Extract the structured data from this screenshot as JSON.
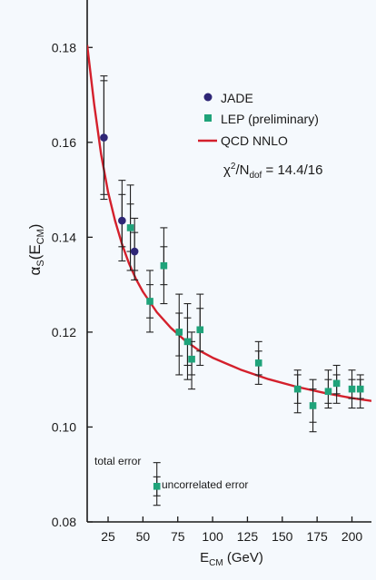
{
  "chart_data": {
    "type": "scatter",
    "xlabel": {
      "main": "E",
      "sub": "CM",
      "unit": " (GeV)"
    },
    "ylabel": {
      "main": "α",
      "sub1": "S",
      "paren_open": "(E",
      "sub2": "CM",
      "paren_close": ")"
    },
    "xlim": [
      10,
      214
    ],
    "ylim": [
      0.08,
      0.19
    ],
    "xticks": [
      25,
      50,
      75,
      100,
      125,
      150,
      175,
      200
    ],
    "xtick_labels": [
      "25",
      "50",
      "75",
      "100",
      "125",
      "150",
      "175",
      "200"
    ],
    "yticks": [
      0.08,
      0.1,
      0.12,
      0.14,
      0.16,
      0.18
    ],
    "ytick_labels": [
      "0.08",
      "0.10",
      "0.12",
      "0.14",
      "0.16",
      "0.18"
    ],
    "grid": false,
    "legend_position": "top-right",
    "legend": [
      {
        "label": "JADE",
        "marker": "circle",
        "color": "#2e2676"
      },
      {
        "label": "LEP (preliminary)",
        "marker": "square",
        "color": "#1fa37a"
      },
      {
        "label": "QCD NNLO",
        "marker": "line",
        "color": "#d4202c"
      }
    ],
    "annotation": {
      "chi": "χ",
      "sup": "2",
      "slash": "/N",
      "sub": "dof",
      "rest": " = 14.4/16"
    },
    "series": [
      {
        "name": "JADE",
        "marker": "circle",
        "color": "#2e2676",
        "points": [
          {
            "x": 22,
            "y": 0.161,
            "tot": [
              0.148,
              0.173
            ],
            "unc": [
              0.149,
              0.174
            ]
          },
          {
            "x": 35,
            "y": 0.1435,
            "tot": [
              0.135,
              0.152
            ],
            "unc": [
              0.138,
              0.149
            ]
          },
          {
            "x": 44,
            "y": 0.137,
            "tot": [
              0.131,
              0.144
            ],
            "unc": [
              0.133,
              0.141
            ]
          }
        ]
      },
      {
        "name": "LEP (preliminary)",
        "marker": "square",
        "color": "#1fa37a",
        "points": [
          {
            "x": 41,
            "y": 0.142,
            "tot": [
              0.133,
              0.151
            ],
            "unc": [
              0.137,
              0.147
            ]
          },
          {
            "x": 55,
            "y": 0.1265,
            "tot": [
              0.12,
              0.133
            ],
            "unc": [
              0.123,
              0.13
            ]
          },
          {
            "x": 65,
            "y": 0.134,
            "tot": [
              0.126,
              0.142
            ],
            "unc": [
              0.13,
              0.138
            ]
          },
          {
            "x": 76,
            "y": 0.12,
            "tot": [
              0.111,
              0.128
            ],
            "unc": [
              0.115,
              0.124
            ]
          },
          {
            "x": 82,
            "y": 0.118,
            "tot": [
              0.11,
              0.126
            ],
            "unc": [
              0.113,
              0.123
            ]
          },
          {
            "x": 85,
            "y": 0.1143,
            "tot": [
              0.108,
              0.12
            ],
            "unc": [
              0.111,
              0.118
            ]
          },
          {
            "x": 91,
            "y": 0.1205,
            "tot": [
              0.113,
              0.128
            ],
            "unc": [
              0.116,
              0.125
            ]
          },
          {
            "x": 133,
            "y": 0.1135,
            "tot": [
              0.109,
              0.118
            ],
            "unc": [
              0.111,
              0.116
            ]
          },
          {
            "x": 161,
            "y": 0.108,
            "tot": [
              0.103,
              0.112
            ],
            "unc": [
              0.105,
              0.111
            ]
          },
          {
            "x": 172,
            "y": 0.1045,
            "tot": [
              0.099,
              0.11
            ],
            "unc": [
              0.101,
              0.108
            ]
          },
          {
            "x": 183,
            "y": 0.1075,
            "tot": [
              0.104,
              0.112
            ],
            "unc": [
              0.105,
              0.11
            ]
          },
          {
            "x": 189,
            "y": 0.1092,
            "tot": [
              0.105,
              0.113
            ],
            "unc": [
              0.107,
              0.111
            ]
          },
          {
            "x": 200,
            "y": 0.108,
            "tot": [
              0.104,
              0.112
            ],
            "unc": [
              0.106,
              0.11
            ]
          },
          {
            "x": 206,
            "y": 0.108,
            "tot": [
              0.104,
              0.111
            ],
            "unc": [
              0.106,
              0.11
            ]
          }
        ]
      },
      {
        "name": "QCD NNLO",
        "marker": "line",
        "color": "#d4202c",
        "x": [
          10,
          15,
          20,
          25,
          30,
          35,
          40,
          45,
          50,
          60,
          70,
          80,
          90,
          100,
          120,
          140,
          160,
          180,
          200,
          214
        ],
        "y": [
          0.1805,
          0.168,
          0.1575,
          0.1495,
          0.1435,
          0.1385,
          0.1345,
          0.1312,
          0.1285,
          0.1242,
          0.1209,
          0.1183,
          0.1162,
          0.1146,
          0.1121,
          0.1101,
          0.1085,
          0.1072,
          0.1061,
          0.1055
        ]
      }
    ],
    "error_legend": {
      "x": 60,
      "y": 0.0875,
      "tot": [
        0.0835,
        0.0925
      ],
      "unc": [
        0.0855,
        0.0895
      ],
      "total_label": "total error",
      "uncorrelated_label": "uncorrelated error"
    }
  }
}
